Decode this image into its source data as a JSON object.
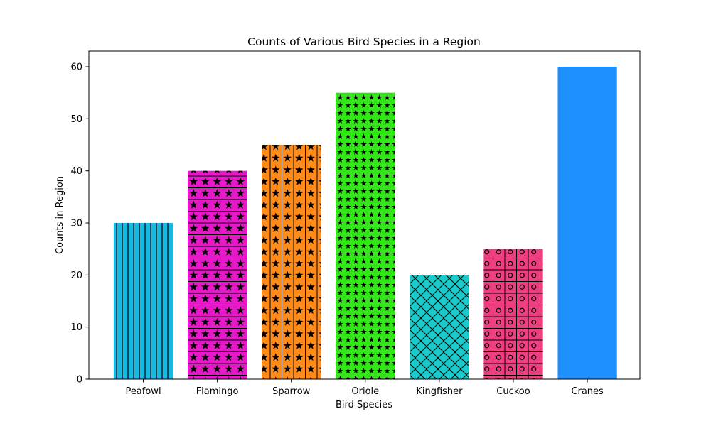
{
  "chart_data": {
    "type": "bar",
    "title": "Counts of Various Bird Species in a Region",
    "xlabel": "Bird Species",
    "ylabel": "Counts in Region",
    "categories": [
      "Peafowl",
      "Flamingo",
      "Sparrow",
      "Oriole",
      "Kingfisher",
      "Cuckoo",
      "Cranes"
    ],
    "values": [
      30,
      40,
      45,
      55,
      20,
      25,
      60
    ],
    "colors": [
      "#1ab8e0",
      "#e619c8",
      "#ff8c1a",
      "#33e619",
      "#1acbcb",
      "#ee3f80",
      "#1e8fff"
    ],
    "patterns": [
      "vertical-lines",
      "stars-and-lines",
      "stars-and-vertical-lines",
      "small-stars",
      "crosshatch",
      "circles-and-grid",
      "none"
    ],
    "ylim": [
      0,
      63
    ],
    "yticks": [
      0,
      10,
      20,
      30,
      40,
      50,
      60
    ],
    "grid": false,
    "legend": "none"
  }
}
